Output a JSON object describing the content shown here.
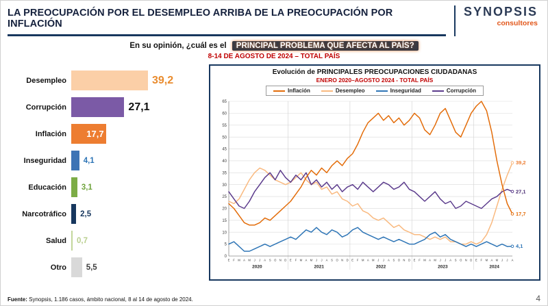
{
  "header": {
    "title": "LA PREOCUPACIÓN POR EL DESEMPLEO ARRIBA DE LA PREOCUPACIÓN POR INFLACIÓN",
    "logo_name": "SYNOPSIS",
    "logo_sub": "consultores"
  },
  "question": {
    "prefix": "En su opinión, ¿cuál es el",
    "highlight": "PRINCIPAL PROBLEMA QUE AFECTA AL PAÍS?",
    "date_line": "8-14 DE AGOSTO DE 2024 – TOTAL PAÍS"
  },
  "chart_data": [
    {
      "type": "bar",
      "orientation": "horizontal",
      "categories": [
        "Desempleo",
        "Corrupción",
        "Inflación",
        "Inseguridad",
        "Educación",
        "Narcotráfico",
        "Salud",
        "Otro"
      ],
      "values": [
        39.2,
        27.1,
        17.7,
        4.1,
        3.1,
        2.5,
        0.7,
        5.5
      ],
      "value_labels": [
        "39,2",
        "27,1",
        "17,7",
        "4,1",
        "3,1",
        "2,5",
        "0,7",
        "5,5"
      ],
      "bar_colors": [
        "#FBCFA7",
        "#7B5AA6",
        "#ED7D31",
        "#3E74B5",
        "#7CAC46",
        "#17375E",
        "#C3D69B",
        "#D9D9D9"
      ],
      "label_colors": [
        "#E98B2D",
        "#111111",
        "#FFFFFF",
        "#2E75B6",
        "#6FA33C",
        "#17375E",
        "#B9CF8E",
        "#3f3f3f"
      ],
      "label_inside": [
        false,
        false,
        true,
        false,
        false,
        false,
        false,
        false
      ],
      "xlim": [
        0,
        42
      ]
    },
    {
      "type": "line",
      "title": "Evolución de PRINCIPALES PREOCUPACIONES CIUDADANAS",
      "subtitle": "ENERO 2020–AGOSTO 2024 - TOTAL PAÍS",
      "ylim": [
        0,
        65
      ],
      "ytick_step": 5,
      "grid": true,
      "legend_position": "top",
      "years": [
        "2020",
        "2021",
        "2022",
        "2023",
        "2024"
      ],
      "month_letters": [
        "E",
        "F",
        "M",
        "A",
        "M",
        "J",
        "J",
        "A",
        "S",
        "O",
        "N",
        "D"
      ],
      "months_2024": 8,
      "series": [
        {
          "name": "Inflación",
          "color": "#E36C09",
          "end_label": "17,7",
          "end_label_color": "#E36C09",
          "values": [
            22,
            20,
            17,
            14,
            13,
            13,
            14,
            16,
            15,
            17,
            19,
            21,
            23,
            26,
            29,
            33,
            36,
            34,
            37,
            35,
            38,
            40,
            38,
            41,
            43,
            47,
            52,
            56,
            58,
            60,
            57,
            59,
            56,
            58,
            55,
            57,
            60,
            58,
            53,
            51,
            55,
            60,
            62,
            57,
            52,
            50,
            55,
            60,
            63,
            65,
            61,
            52,
            40,
            30,
            22,
            17.7
          ]
        },
        {
          "name": "Desempleo",
          "color": "#F9B97F",
          "end_label": "39,2",
          "end_label_color": "#ED7D31",
          "values": [
            23,
            22,
            24,
            28,
            32,
            35,
            37,
            36,
            34,
            32,
            31,
            30,
            31,
            33,
            35,
            32,
            30,
            31,
            28,
            29,
            26,
            27,
            24,
            23,
            21,
            22,
            19,
            18,
            16,
            15,
            16,
            14,
            12,
            13,
            11,
            10,
            9,
            9,
            8,
            7,
            8,
            7,
            8,
            6,
            6,
            5,
            5,
            6,
            5,
            6,
            9,
            14,
            21,
            28,
            34,
            39.2
          ]
        },
        {
          "name": "Inseguridad",
          "color": "#2E75B6",
          "end_label": "4,1",
          "end_label_color": "#2E75B6",
          "values": [
            5,
            6,
            4,
            2,
            2,
            3,
            4,
            5,
            4,
            5,
            6,
            7,
            8,
            7,
            9,
            11,
            10,
            12,
            10,
            9,
            11,
            10,
            8,
            9,
            11,
            12,
            10,
            9,
            8,
            7,
            8,
            7,
            6,
            7,
            6,
            5,
            5,
            6,
            7,
            9,
            10,
            8,
            9,
            7,
            6,
            5,
            4,
            5,
            4,
            5,
            6,
            5,
            4,
            5,
            4,
            4.1
          ]
        },
        {
          "name": "Corrupción",
          "color": "#5B3B8C",
          "end_label": "27,1",
          "end_label_color": "#4A2D73",
          "values": [
            27,
            24,
            21,
            20,
            23,
            27,
            30,
            33,
            35,
            32,
            36,
            33,
            31,
            34,
            32,
            35,
            30,
            32,
            29,
            31,
            28,
            30,
            27,
            29,
            30,
            28,
            31,
            29,
            27,
            29,
            31,
            30,
            28,
            29,
            31,
            28,
            27,
            25,
            23,
            25,
            27,
            24,
            22,
            23,
            20,
            21,
            23,
            22,
            21,
            20,
            22,
            24,
            25,
            27,
            28,
            27.1
          ]
        }
      ]
    }
  ],
  "footer": {
    "source_bold": "Fuente:",
    "source_rest": " Synopsis, 1.186 casos, ámbito nacional, 8 al 14 de agosto de 2024.",
    "page": "4"
  }
}
